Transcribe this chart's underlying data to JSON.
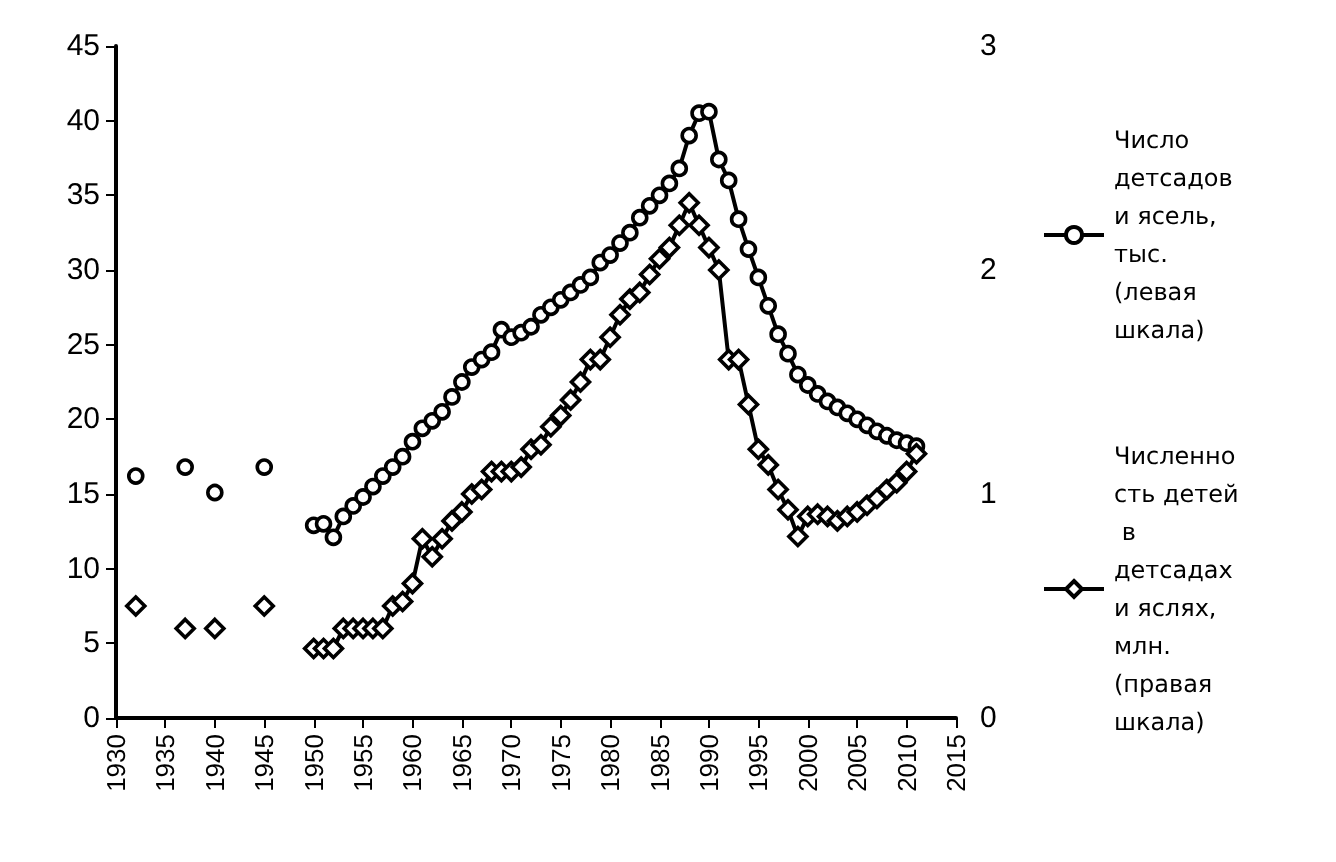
{
  "chart_data": {
    "type": "line",
    "xlim": [
      1930,
      2015
    ],
    "xticks": [
      1930,
      1935,
      1940,
      1945,
      1950,
      1955,
      1960,
      1965,
      1970,
      1975,
      1980,
      1985,
      1990,
      1995,
      2000,
      2005,
      2010,
      2015
    ],
    "ylim": [
      0,
      45
    ],
    "yticks": [
      0,
      5,
      10,
      15,
      20,
      25,
      30,
      35,
      40,
      45
    ],
    "y2lim": [
      0,
      3
    ],
    "y2ticks": [
      0,
      1,
      2,
      3
    ],
    "grid": false,
    "legend": "right",
    "marker": "circle",
    "line_style": "solid",
    "series": [
      {
        "name": "Число детсадов и ясель, тыс. (левая шкала)",
        "color": "#000000",
        "x": [
          1932,
          1933,
          1937,
          1938,
          1940,
          1941,
          1945,
          1946,
          1950,
          1951,
          1952,
          1953,
          1954,
          1955,
          1956,
          1957,
          1958,
          1959,
          1960,
          1961,
          1962,
          1963,
          1964,
          1965,
          1966,
          1967,
          1968,
          1969,
          1970,
          1971,
          1972,
          1973,
          1974,
          1975,
          1976,
          1977,
          1978,
          1979,
          1980,
          1981,
          1982,
          1983,
          1984,
          1985,
          1986,
          1987,
          1988,
          1989,
          1990,
          1991,
          1992,
          1993,
          1994,
          1995,
          1996,
          1997,
          1998,
          1999,
          2000,
          2001,
          2002,
          2003,
          2004,
          2005,
          2006,
          2007,
          2008,
          2009,
          2010,
          2011
        ],
        "values": [
          16.2,
          null,
          16.8,
          null,
          15.1,
          null,
          16.8,
          null,
          12.9,
          13.0,
          12.1,
          13.5,
          14.2,
          14.8,
          15.5,
          16.2,
          16.8,
          17.5,
          18.5,
          19.4,
          19.9,
          20.5,
          21.5,
          22.5,
          23.5,
          24.0,
          24.5,
          26.0,
          25.5,
          25.8,
          26.2,
          27.0,
          27.5,
          28.0,
          28.5,
          29.0,
          29.5,
          30.5,
          31.0,
          31.8,
          32.5,
          33.5,
          34.3,
          35.0,
          35.8,
          36.8,
          39.0,
          40.5,
          40.6,
          37.4,
          36.0,
          33.4,
          31.4,
          29.5,
          27.6,
          25.7,
          24.4,
          23.0,
          22.3,
          21.7,
          21.2,
          20.8,
          20.4,
          20.0,
          19.6,
          19.2,
          18.9,
          18.6,
          18.4,
          18.2
        ]
      },
      {
        "name": "Численность детей в детсадах и яслях, млн. (правая шкала)",
        "color": "#000000",
        "marker": "diamond",
        "axis": "y2",
        "x": [
          1932,
          1933,
          1937,
          1938,
          1940,
          1941,
          1945,
          1946,
          1950,
          1951,
          1952,
          1953,
          1954,
          1955,
          1956,
          1957,
          1958,
          1959,
          1960,
          1961,
          1962,
          1963,
          1964,
          1965,
          1966,
          1967,
          1968,
          1969,
          1970,
          1971,
          1972,
          1973,
          1974,
          1975,
          1976,
          1977,
          1978,
          1979,
          1980,
          1981,
          1982,
          1983,
          1984,
          1985,
          1986,
          1987,
          1988,
          1989,
          1990,
          1991,
          1992,
          1993,
          1994,
          1995,
          1996,
          1997,
          1998,
          1999,
          2000,
          2001,
          2002,
          2003,
          2004,
          2005,
          2006,
          2007,
          2008,
          2009,
          2010,
          2011
        ],
        "values": [
          0.5,
          null,
          0.4,
          null,
          0.4,
          null,
          0.5,
          null,
          0.31,
          0.31,
          0.31,
          0.4,
          0.4,
          0.4,
          0.4,
          0.4,
          0.5,
          0.52,
          0.6,
          0.8,
          0.72,
          0.8,
          0.88,
          0.92,
          1.0,
          1.02,
          1.1,
          1.1,
          1.1,
          1.12,
          1.2,
          1.22,
          1.3,
          1.35,
          1.42,
          1.5,
          1.6,
          1.6,
          1.7,
          1.8,
          1.87,
          1.9,
          1.98,
          2.05,
          2.1,
          2.2,
          2.3,
          2.2,
          2.1,
          2.0,
          1.6,
          1.6,
          1.4,
          1.2,
          1.13,
          1.02,
          0.93,
          0.81,
          0.9,
          0.91,
          0.9,
          0.88,
          0.9,
          0.92,
          0.95,
          0.98,
          1.02,
          1.05,
          1.1,
          1.18
        ]
      }
    ]
  }
}
